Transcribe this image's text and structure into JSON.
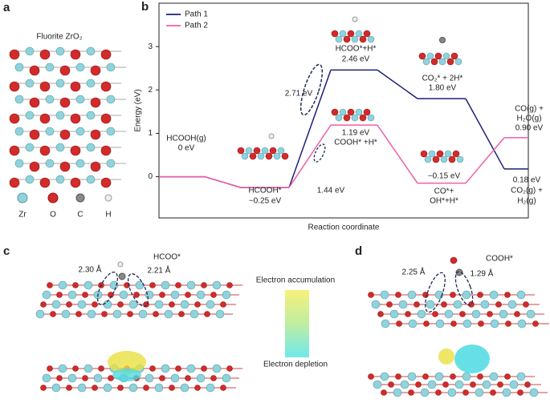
{
  "panel_labels": [
    "a",
    "b",
    "c",
    "d"
  ],
  "panel_a": {
    "title": "Fluorite ZrO₂",
    "legend": [
      "Zr",
      "O",
      "C",
      "H"
    ]
  },
  "chart_data": {
    "type": "line",
    "ylabel": "Energy (eV)",
    "xlabel": "Reaction coordinate",
    "ylim": [
      -0.95,
      4
    ],
    "yticks": [
      0,
      1,
      2,
      3
    ],
    "legend": "upper left",
    "series": [
      {
        "name": "Path 1",
        "color": "#1c1f7a",
        "values": [
          0,
          -0.25,
          2.46,
          1.8,
          0.18
        ],
        "value_labels": [
          "0 eV",
          "−0.25 eV",
          "2.46 eV",
          "1.80 eV",
          "0.18 eV"
        ],
        "state_labels": [
          [
            "HCOOH(g)"
          ],
          [
            "HCOOH*"
          ],
          [
            "HCOO*+H*"
          ],
          [
            "CO₂* + 2H*"
          ],
          [
            "CO₂(g) +",
            "H₂(g)"
          ]
        ],
        "barrier_label": "2.71 eV"
      },
      {
        "name": "Path 2",
        "color": "#ee5fa7",
        "values": [
          0,
          -0.25,
          1.19,
          -0.15,
          0.9
        ],
        "value_labels": [
          null,
          null,
          "1.19 eV",
          "−0.15 eV",
          "0.90 eV"
        ],
        "state_labels": [
          null,
          null,
          [
            "COOH* +H*"
          ],
          [
            "CO*+",
            "OH*+H*"
          ],
          [
            "CO(g) +",
            "H₂O(g)"
          ]
        ],
        "barrier_label": "1.44 eV"
      }
    ]
  },
  "panel_c": {
    "title": "HCOO*",
    "distances": [
      "2.30 Å",
      "2.21 Å"
    ]
  },
  "colorbar": {
    "top": "Electron accumulation",
    "bottom": "Electron depletion"
  },
  "panel_d": {
    "title": "COOH*",
    "distances": [
      "2.25 Å",
      "1.29 Å"
    ]
  }
}
